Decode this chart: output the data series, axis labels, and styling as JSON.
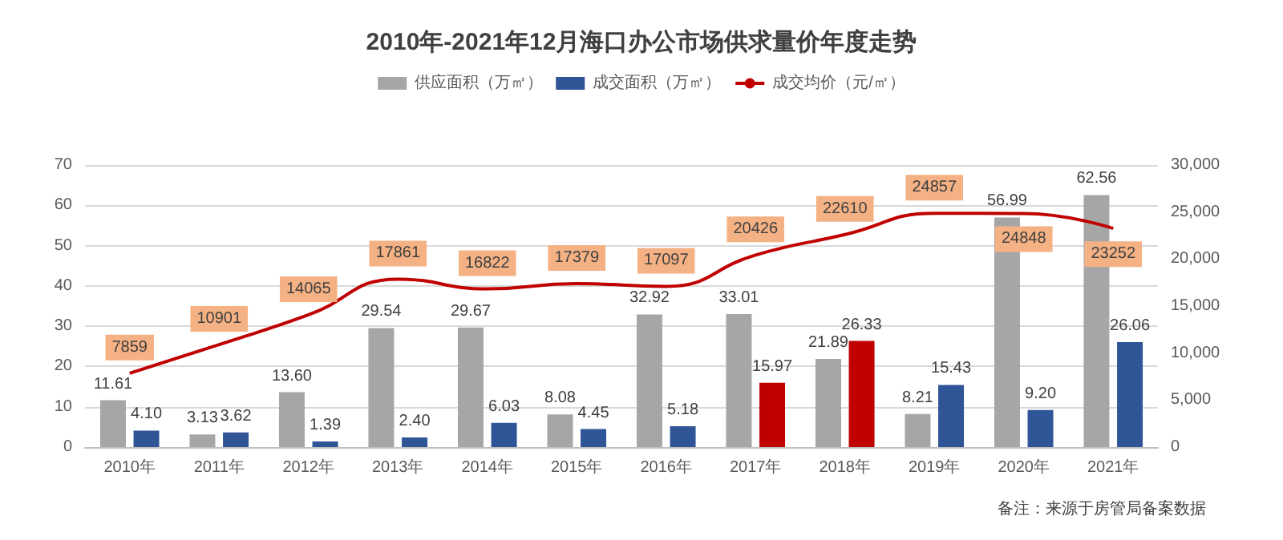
{
  "chart_data": {
    "type": "bar",
    "title": "2010年-2021年12月海口办公市场供求量价年度走势",
    "categories": [
      "2010年",
      "2011年",
      "2012年",
      "2013年",
      "2014年",
      "2015年",
      "2016年",
      "2017年",
      "2018年",
      "2019年",
      "2020年",
      "2021年"
    ],
    "series": [
      {
        "name": "供应面积（万㎡）",
        "color": "#a6a6a6",
        "values": [
          11.61,
          3.13,
          13.6,
          29.54,
          29.67,
          8.08,
          32.92,
          33.01,
          21.89,
          8.21,
          56.99,
          62.56
        ],
        "value_labels": [
          "11.61",
          "3.13",
          "13.60",
          "29.54",
          "29.67",
          "8.08",
          "32.92",
          "33.01",
          "21.89",
          "8.21",
          "56.99",
          "62.56"
        ]
      },
      {
        "name": "成交面积（万㎡）",
        "color": "#2f5597",
        "colors": [
          "#2f5597",
          "#2f5597",
          "#2f5597",
          "#2f5597",
          "#2f5597",
          "#2f5597",
          "#2f5597",
          "#c00000",
          "#c00000",
          "#2f5597",
          "#2f5597",
          "#2f5597"
        ],
        "values": [
          4.1,
          3.62,
          1.39,
          2.4,
          6.03,
          4.45,
          5.18,
          15.97,
          26.33,
          15.43,
          9.2,
          26.06
        ],
        "value_labels": [
          "4.10",
          "3.62",
          "1.39",
          "2.40",
          "6.03",
          "4.45",
          "5.18",
          "15.97",
          "26.33",
          "15.43",
          "9.20",
          "26.06"
        ]
      },
      {
        "name": "成交均价（元/㎡）",
        "type": "line",
        "axis": "y2",
        "color": "#c00000",
        "values": [
          7859,
          10901,
          14065,
          17861,
          16822,
          17379,
          17097,
          20426,
          22610,
          24857,
          24848,
          23252
        ],
        "value_labels": [
          "7859",
          "10901",
          "14065",
          "17861",
          "16822",
          "17379",
          "17097",
          "20426",
          "22610",
          "24857",
          "24848",
          "23252"
        ]
      }
    ],
    "ylim": [
      0,
      70
    ],
    "yticks": [
      0,
      10,
      20,
      30,
      40,
      50,
      60,
      70
    ],
    "y2lim": [
      0,
      30000
    ],
    "y2ticks": [
      0,
      {
        "value": 5000,
        "label": "5,000"
      },
      {
        "value": 10000,
        "label": "10,000"
      },
      {
        "value": 15000,
        "label": "15,000"
      },
      {
        "value": 20000,
        "label": "20,000"
      },
      {
        "value": 25000,
        "label": "25,000"
      },
      {
        "value": 30000,
        "label": "30,000"
      }
    ],
    "grid": "y",
    "legend": "top",
    "marker": "none",
    "annotations": [
      "备注：来源于房管局备案数据"
    ]
  }
}
